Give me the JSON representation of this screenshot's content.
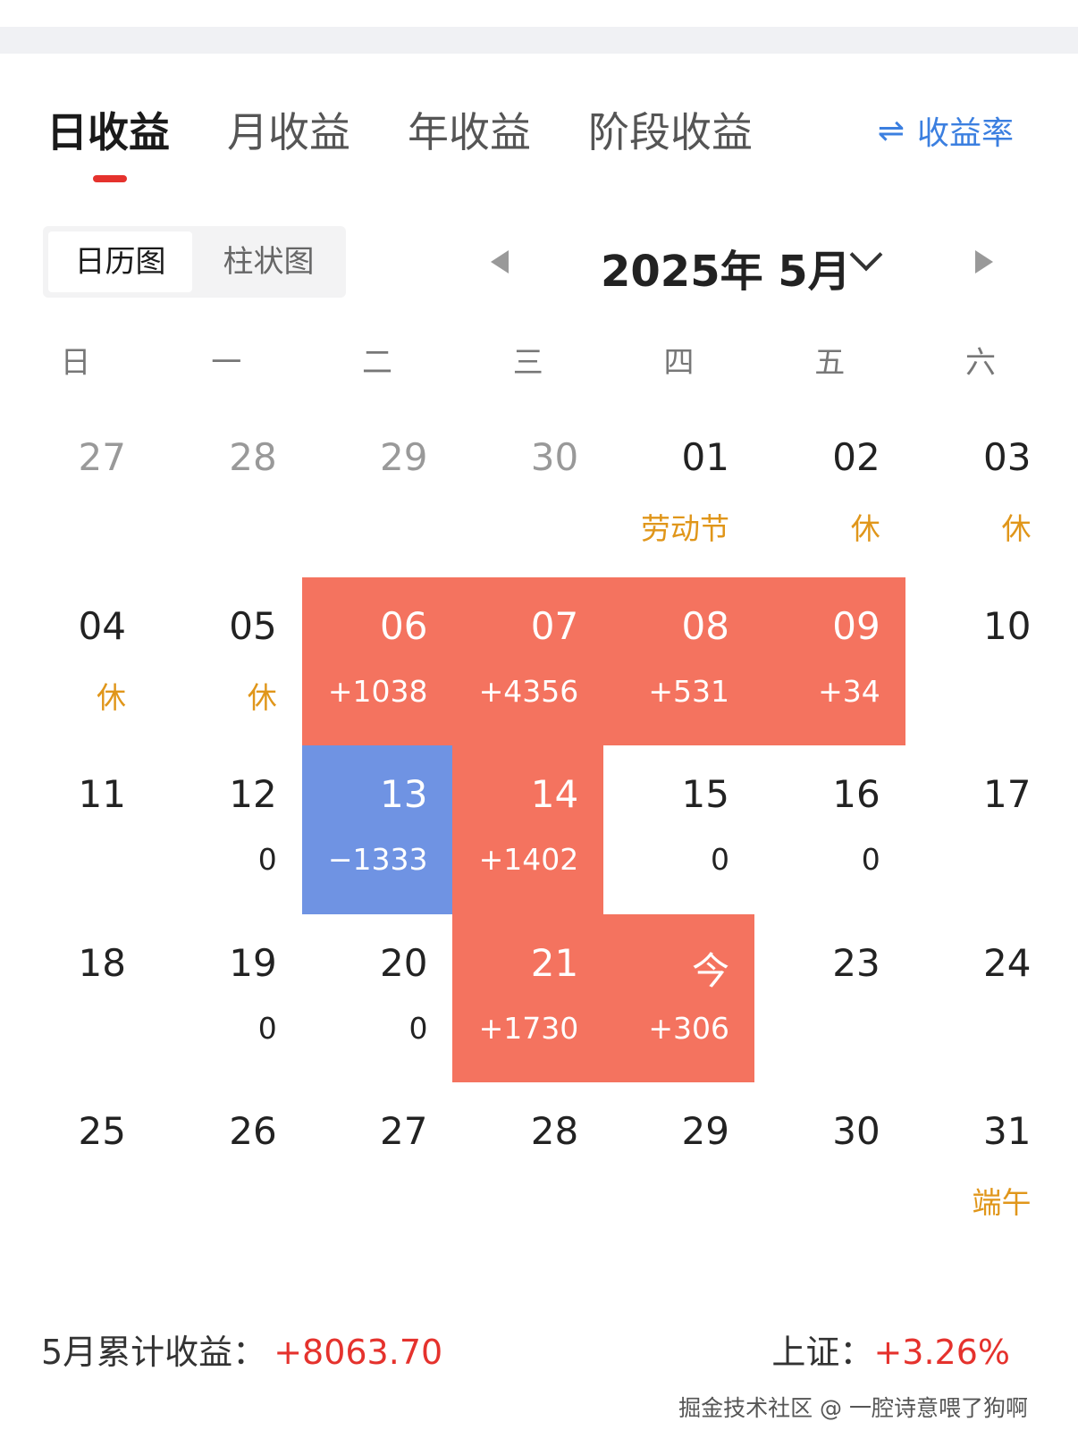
{
  "tabs": [
    {
      "label": "日收益",
      "active": true
    },
    {
      "label": "月收益"
    },
    {
      "label": "年收益"
    },
    {
      "label": "阶段收益"
    }
  ],
  "rate_toggle": {
    "icon": "swap-arrows-icon",
    "glyph": "⇌",
    "label": "收益率"
  },
  "view_toggle": [
    {
      "label": "日历图",
      "active": true
    },
    {
      "label": "柱状图"
    }
  ],
  "month_selector": {
    "label": "2025年 5月"
  },
  "weekdays": [
    "日",
    "一",
    "二",
    "三",
    "四",
    "五",
    "六"
  ],
  "colors": {
    "profit": "#f4735f",
    "loss": "#6f93e3",
    "holiday": "#e0961a",
    "accent": "#e5322d",
    "link": "#3b7fe0"
  },
  "days": [
    {
      "d": "27",
      "other": true
    },
    {
      "d": "28",
      "other": true
    },
    {
      "d": "29",
      "other": true
    },
    {
      "d": "30",
      "other": true
    },
    {
      "d": "01",
      "note": "劳动节",
      "hol": true
    },
    {
      "d": "02",
      "note": "休",
      "hol": true
    },
    {
      "d": "03",
      "note": "休",
      "hol": true
    },
    {
      "d": "04",
      "note": "休",
      "hol": true
    },
    {
      "d": "05",
      "note": "休",
      "hol": true
    },
    {
      "d": "06",
      "note": "+1038",
      "type": "up"
    },
    {
      "d": "07",
      "note": "+4356",
      "type": "up"
    },
    {
      "d": "08",
      "note": "+531",
      "type": "up"
    },
    {
      "d": "09",
      "note": "+34",
      "type": "up"
    },
    {
      "d": "10"
    },
    {
      "d": "11"
    },
    {
      "d": "12",
      "note": "0"
    },
    {
      "d": "13",
      "note": "−1333",
      "type": "down"
    },
    {
      "d": "14",
      "note": "+1402",
      "type": "up"
    },
    {
      "d": "15",
      "note": "0"
    },
    {
      "d": "16",
      "note": "0"
    },
    {
      "d": "17"
    },
    {
      "d": "18"
    },
    {
      "d": "19",
      "note": "0"
    },
    {
      "d": "20",
      "note": "0"
    },
    {
      "d": "21",
      "note": "+1730",
      "type": "up"
    },
    {
      "d": "今",
      "note": "+306",
      "type": "up"
    },
    {
      "d": "23"
    },
    {
      "d": "24"
    },
    {
      "d": "25"
    },
    {
      "d": "26"
    },
    {
      "d": "27"
    },
    {
      "d": "28"
    },
    {
      "d": "29"
    },
    {
      "d": "30"
    },
    {
      "d": "31",
      "note": "端午",
      "hol": true
    }
  ],
  "footer": {
    "total_label": "5月累计收益：",
    "total_value": "+8063.70",
    "index_label": "上证：",
    "index_value": "+3.26%"
  },
  "watermark": "掘金技术社区 @ 一腔诗意喂了狗啊"
}
